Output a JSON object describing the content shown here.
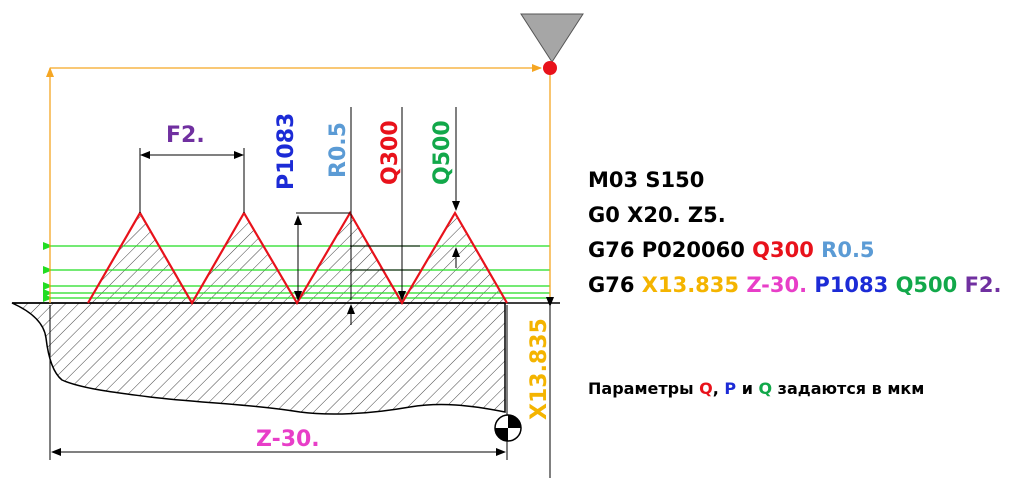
{
  "colors": {
    "red": "#e8121b",
    "blue": "#1c2bd6",
    "lightblue": "#5b9bd5",
    "green": "#12a84a",
    "orange": "#f5a623",
    "yellow": "#f4b400",
    "magenta": "#e83ec8",
    "purple": "#7030a0",
    "line_green": "#22dd22"
  },
  "diagram": {
    "label_pitch": "F2.",
    "label_p": "P1083",
    "label_r": "R0.5",
    "label_q1": "Q300",
    "label_q2": "Q500",
    "label_x": "X13.835",
    "label_z": "Z-30."
  },
  "code": {
    "line1": "M03 S150",
    "line2": "G0 X20. Z5.",
    "line3": [
      {
        "text": "G76 P020060 ",
        "color": "#000000"
      },
      {
        "text": "Q300",
        "color": "#e8121b"
      },
      {
        "text": " ",
        "color": "#000000"
      },
      {
        "text": "R0.5",
        "color": "#5b9bd5"
      }
    ],
    "line4": [
      {
        "text": "G76 ",
        "color": "#000000"
      },
      {
        "text": "X13.835",
        "color": "#f4b400"
      },
      {
        "text": " ",
        "color": "#000000"
      },
      {
        "text": "Z-30.",
        "color": "#e83ec8"
      },
      {
        "text": " ",
        "color": "#000000"
      },
      {
        "text": "P1083",
        "color": "#1c2bd6"
      },
      {
        "text": " ",
        "color": "#000000"
      },
      {
        "text": "Q500",
        "color": "#12a84a"
      },
      {
        "text": " ",
        "color": "#000000"
      },
      {
        "text": "F2.",
        "color": "#7030a0"
      }
    ]
  },
  "note": [
    {
      "text": "Параметры ",
      "color": "#000000"
    },
    {
      "text": "Q",
      "color": "#e8121b"
    },
    {
      "text": ", ",
      "color": "#000000"
    },
    {
      "text": "P",
      "color": "#1c2bd6"
    },
    {
      "text": " и ",
      "color": "#000000"
    },
    {
      "text": "Q",
      "color": "#12a84a"
    },
    {
      "text": " задаются в мкм",
      "color": "#000000"
    }
  ]
}
